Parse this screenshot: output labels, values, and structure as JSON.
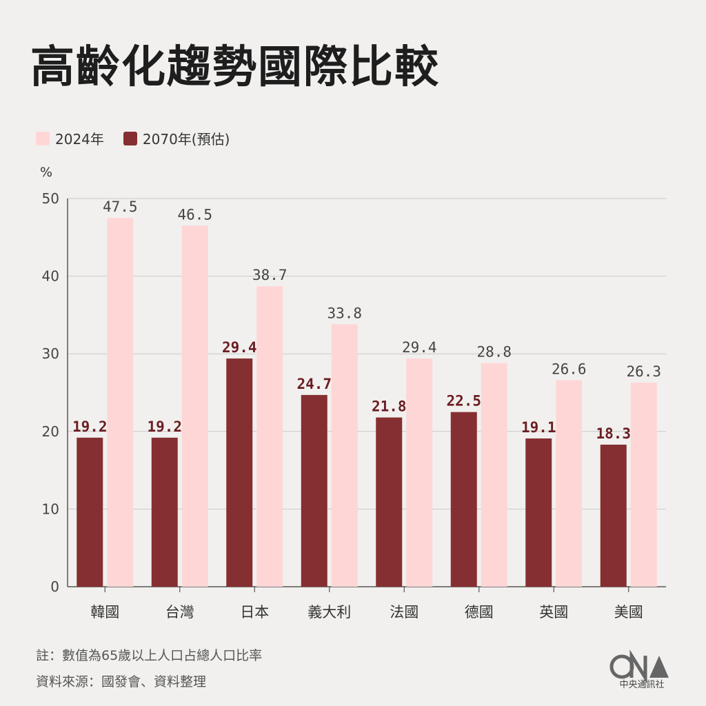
{
  "title": "高齡化趨勢國際比較",
  "legend": [
    {
      "label": "2024年",
      "color": "#ffd6d6"
    },
    {
      "label": "2070年(預估)",
      "color": "#862f32"
    }
  ],
  "footer": {
    "note": "註：數值為65歲以上人口占總人口比率",
    "source": "資料來源：國發會、資料整理"
  },
  "logo_text": "中央通訊社",
  "colors": {
    "bar_2070": "#862f32",
    "bar_2024": "#ffd6d6",
    "label_2070": "#6b1d22",
    "label_2024": "#444444"
  },
  "chart_data": {
    "type": "bar",
    "ylabel": "%",
    "ylim": [
      0,
      50
    ],
    "yticks": [
      0,
      10,
      20,
      30,
      40,
      50
    ],
    "grid": true,
    "legend_position": "top-left",
    "categories": [
      "韓國",
      "台灣",
      "日本",
      "義大利",
      "法國",
      "德國",
      "英國",
      "美國"
    ],
    "series": [
      {
        "name": "2070年(預估)",
        "values": [
          19.2,
          19.2,
          29.4,
          24.7,
          21.8,
          22.5,
          19.1,
          18.3
        ]
      },
      {
        "name": "2024年",
        "values": [
          47.5,
          46.5,
          38.7,
          33.8,
          29.4,
          28.8,
          26.6,
          26.3
        ]
      }
    ]
  }
}
